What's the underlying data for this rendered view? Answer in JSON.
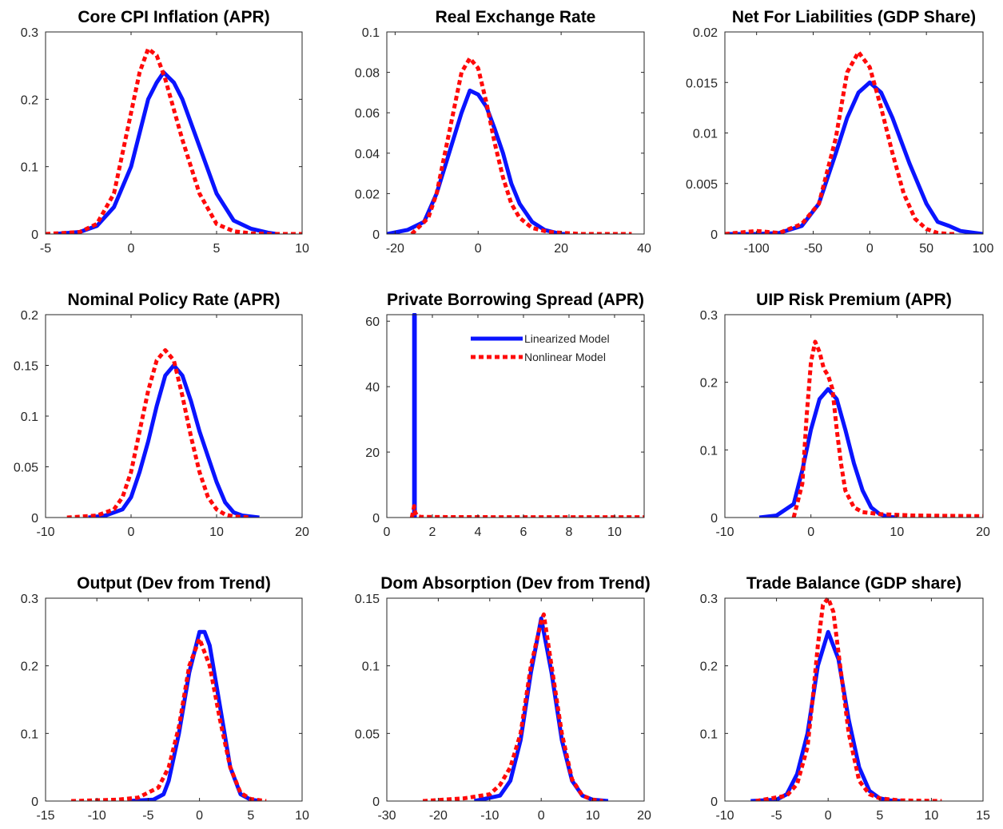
{
  "colors": {
    "linear": "#0a14ff",
    "nonlinear": "#ff0a0a",
    "axes": "#262626"
  },
  "chart_data": [
    {
      "type": "line",
      "title": "Core CPI Inflation (APR)",
      "xlim": [
        -5,
        10
      ],
      "ylim": [
        0,
        0.3
      ],
      "xticks": [
        "-5",
        "0",
        "5",
        "10"
      ],
      "yticks": [
        "0",
        "0.1",
        "0.2",
        "0.3"
      ],
      "series": [
        {
          "key": "linear",
          "x": [
            -4.5,
            -3,
            -2,
            -1,
            0,
            0.5,
            1,
            1.5,
            1.9,
            2.5,
            3,
            4,
            5,
            6,
            7,
            8,
            8.5
          ],
          "y": [
            0,
            0.003,
            0.012,
            0.04,
            0.1,
            0.15,
            0.2,
            0.225,
            0.24,
            0.225,
            0.2,
            0.13,
            0.06,
            0.02,
            0.008,
            0.002,
            0
          ]
        },
        {
          "key": "nonlinear",
          "x": [
            -5,
            -3,
            -2,
            -1,
            -0.5,
            0,
            0.5,
            1,
            1.5,
            2,
            3,
            4,
            5,
            6,
            7,
            8,
            10
          ],
          "y": [
            0,
            0.003,
            0.015,
            0.06,
            0.12,
            0.18,
            0.24,
            0.275,
            0.265,
            0.23,
            0.14,
            0.06,
            0.015,
            0.004,
            0.001,
            0,
            0
          ]
        }
      ]
    },
    {
      "type": "line",
      "title": "Real Exchange Rate",
      "xlim": [
        -22,
        40
      ],
      "ylim": [
        0,
        0.1
      ],
      "xticks": [
        "-20",
        "0",
        "20",
        "40"
      ],
      "yticks": [
        "0",
        "0.02",
        "0.04",
        "0.06",
        "0.08",
        "0.1"
      ],
      "series": [
        {
          "key": "linear",
          "x": [
            -22,
            -17,
            -13,
            -10,
            -7,
            -4,
            -2,
            0,
            2,
            4,
            6,
            8,
            10,
            13,
            16,
            20,
            22
          ],
          "y": [
            0,
            0.002,
            0.006,
            0.02,
            0.04,
            0.06,
            0.071,
            0.069,
            0.063,
            0.052,
            0.04,
            0.025,
            0.015,
            0.006,
            0.002,
            0,
            0
          ]
        },
        {
          "key": "nonlinear",
          "x": [
            -16,
            -12,
            -10,
            -8,
            -6,
            -4,
            -2,
            0,
            2,
            4,
            6,
            8,
            10,
            13,
            17,
            25,
            37
          ],
          "y": [
            0,
            0.008,
            0.02,
            0.04,
            0.06,
            0.08,
            0.087,
            0.082,
            0.065,
            0.045,
            0.028,
            0.015,
            0.008,
            0.003,
            0.001,
            0,
            0
          ]
        }
      ]
    },
    {
      "type": "line",
      "title": "Net For Liabilities (GDP Share)",
      "xlim": [
        -128,
        100
      ],
      "ylim": [
        0,
        0.02
      ],
      "xticks": [
        "-100",
        "-50",
        "0",
        "50",
        "100"
      ],
      "yticks": [
        "0",
        "0.005",
        "0.01",
        "0.015",
        "0.02"
      ],
      "series": [
        {
          "key": "linear",
          "x": [
            -128,
            -100,
            -80,
            -60,
            -45,
            -30,
            -20,
            -10,
            0,
            10,
            20,
            35,
            50,
            60,
            70,
            80,
            100
          ],
          "y": [
            0,
            0,
            0.0001,
            0.0008,
            0.003,
            0.008,
            0.0115,
            0.014,
            0.015,
            0.014,
            0.0115,
            0.007,
            0.003,
            0.0012,
            0.0008,
            0.0003,
            0
          ]
        },
        {
          "key": "nonlinear",
          "x": [
            -128,
            -100,
            -80,
            -60,
            -45,
            -30,
            -20,
            -10,
            0,
            10,
            20,
            30,
            40,
            50,
            60,
            70,
            75
          ],
          "y": [
            0,
            0.0003,
            0.0001,
            0.001,
            0.003,
            0.0095,
            0.016,
            0.018,
            0.0165,
            0.0125,
            0.008,
            0.004,
            0.0015,
            0.0005,
            0.0001,
            0,
            0
          ]
        }
      ]
    },
    {
      "type": "line",
      "title": "Nominal Policy Rate (APR)",
      "xlim": [
        -10,
        20
      ],
      "ylim": [
        0,
        0.2
      ],
      "xticks": [
        "-10",
        "0",
        "10",
        "20"
      ],
      "yticks": [
        "0",
        "0.05",
        "0.1",
        "0.15",
        "0.2"
      ],
      "series": [
        {
          "key": "linear",
          "x": [
            -5,
            -3,
            -1,
            0,
            1,
            2,
            3,
            4,
            5,
            6,
            7,
            8,
            9,
            10,
            11,
            12,
            13,
            15
          ],
          "y": [
            0,
            0.002,
            0.008,
            0.02,
            0.045,
            0.075,
            0.11,
            0.14,
            0.15,
            0.14,
            0.115,
            0.085,
            0.06,
            0.035,
            0.015,
            0.005,
            0.002,
            0
          ]
        },
        {
          "key": "nonlinear",
          "x": [
            -7.5,
            -4,
            -2,
            -1,
            0,
            1,
            2,
            3,
            4,
            5,
            6,
            7,
            8,
            9,
            10,
            11,
            12,
            14
          ],
          "y": [
            0,
            0.002,
            0.008,
            0.02,
            0.045,
            0.085,
            0.125,
            0.155,
            0.165,
            0.155,
            0.12,
            0.08,
            0.045,
            0.02,
            0.008,
            0.003,
            0.001,
            0
          ]
        }
      ]
    },
    {
      "type": "line",
      "title": "Private Borrowing Spread (APR)",
      "xlim": [
        0,
        11.3
      ],
      "ylim": [
        0,
        62
      ],
      "xticks": [
        "0",
        "2",
        "4",
        "6",
        "8",
        "10"
      ],
      "yticks": [
        "0",
        "20",
        "40",
        "60"
      ],
      "series": [
        {
          "key": "linear",
          "name": "Linearized Model",
          "x": [
            1.2,
            1.2,
            1.23,
            1.23
          ],
          "y": [
            0,
            62,
            62,
            0
          ]
        },
        {
          "key": "nonlinear",
          "name": "Nonlinear Model",
          "x": [
            1.1,
            1.2,
            1.25,
            1.35,
            1.5,
            2,
            5,
            8,
            11.3
          ],
          "y": [
            0,
            3.5,
            1.5,
            0.4,
            0.2,
            0.15,
            0.1,
            0.1,
            0.1
          ]
        }
      ],
      "legend": "top-right"
    },
    {
      "type": "line",
      "title": "UIP Risk Premium (APR)",
      "xlim": [
        -10,
        20
      ],
      "ylim": [
        0,
        0.3
      ],
      "xticks": [
        "-10",
        "0",
        "10",
        "20"
      ],
      "yticks": [
        "0",
        "0.1",
        "0.2",
        "0.3"
      ],
      "series": [
        {
          "key": "linear",
          "x": [
            -6,
            -4,
            -2,
            -1,
            0,
            1,
            2,
            3,
            4,
            5,
            6,
            7,
            8,
            9,
            10
          ],
          "y": [
            0,
            0.003,
            0.02,
            0.07,
            0.13,
            0.175,
            0.19,
            0.175,
            0.13,
            0.08,
            0.04,
            0.015,
            0.005,
            0.001,
            0
          ]
        },
        {
          "key": "nonlinear",
          "x": [
            -2,
            -1,
            -0.5,
            0,
            0.5,
            1,
            1.5,
            2,
            2.5,
            3,
            3.5,
            4,
            5,
            6,
            8,
            12,
            20
          ],
          "y": [
            0,
            0.05,
            0.15,
            0.23,
            0.26,
            0.245,
            0.22,
            0.21,
            0.19,
            0.13,
            0.08,
            0.04,
            0.015,
            0.008,
            0.005,
            0.003,
            0.002
          ]
        }
      ]
    },
    {
      "type": "line",
      "title": "Output (Dev from Trend)",
      "xlim": [
        -15,
        10
      ],
      "ylim": [
        0,
        0.3
      ],
      "xticks": [
        "-15",
        "-10",
        "-5",
        "0",
        "5",
        "10"
      ],
      "yticks": [
        "0",
        "0.1",
        "0.2",
        "0.3"
      ],
      "series": [
        {
          "key": "linear",
          "x": [
            -7,
            -4.5,
            -3.5,
            -3,
            -2,
            -1,
            0,
            0.5,
            1,
            2,
            3,
            4,
            5,
            6
          ],
          "y": [
            0,
            0.002,
            0.01,
            0.03,
            0.1,
            0.19,
            0.25,
            0.25,
            0.23,
            0.14,
            0.05,
            0.01,
            0.002,
            0
          ]
        },
        {
          "key": "nonlinear",
          "x": [
            -12.5,
            -8,
            -6,
            -4,
            -3,
            -2,
            -1,
            0,
            1,
            2,
            3,
            4,
            5,
            6.5
          ],
          "y": [
            0,
            0.002,
            0.005,
            0.02,
            0.05,
            0.11,
            0.2,
            0.24,
            0.2,
            0.12,
            0.05,
            0.012,
            0.003,
            0
          ]
        }
      ]
    },
    {
      "type": "line",
      "title": "Dom Absorption (Dev from Trend)",
      "xlim": [
        -30,
        20
      ],
      "ylim": [
        0,
        0.15
      ],
      "xticks": [
        "-30",
        "-20",
        "-10",
        "0",
        "10",
        "20"
      ],
      "yticks": [
        "0",
        "0.05",
        "0.1",
        "0.15"
      ],
      "series": [
        {
          "key": "linear",
          "x": [
            -13,
            -8,
            -6,
            -4,
            -2,
            0,
            2,
            4,
            6,
            8,
            10,
            13
          ],
          "y": [
            0,
            0.004,
            0.015,
            0.045,
            0.095,
            0.135,
            0.095,
            0.045,
            0.015,
            0.004,
            0.001,
            0
          ]
        },
        {
          "key": "nonlinear",
          "x": [
            -23,
            -15,
            -10,
            -8,
            -6,
            -4,
            -2,
            0,
            0.5,
            2,
            4,
            6,
            8,
            10,
            12
          ],
          "y": [
            0,
            0.002,
            0.005,
            0.012,
            0.025,
            0.05,
            0.1,
            0.133,
            0.138,
            0.1,
            0.05,
            0.016,
            0.004,
            0.001,
            0
          ]
        }
      ]
    },
    {
      "type": "line",
      "title": "Trade Balance (GDP share)",
      "xlim": [
        -10,
        15
      ],
      "ylim": [
        0,
        0.3
      ],
      "xticks": [
        "-10",
        "-5",
        "0",
        "5",
        "10",
        "15"
      ],
      "yticks": [
        "0",
        "0.1",
        "0.2",
        "0.3"
      ],
      "series": [
        {
          "key": "linear",
          "x": [
            -7.5,
            -5,
            -4,
            -3,
            -2,
            -1,
            0,
            1,
            2,
            3,
            4,
            5,
            6,
            7
          ],
          "y": [
            0,
            0.002,
            0.01,
            0.04,
            0.1,
            0.2,
            0.25,
            0.21,
            0.12,
            0.05,
            0.015,
            0.004,
            0.001,
            0
          ]
        },
        {
          "key": "nonlinear",
          "x": [
            -7,
            -4,
            -3,
            -2,
            -1.5,
            -1,
            -0.5,
            0,
            0.5,
            1,
            2,
            3,
            4,
            5,
            7,
            11
          ],
          "y": [
            0,
            0.008,
            0.025,
            0.08,
            0.15,
            0.23,
            0.29,
            0.3,
            0.28,
            0.22,
            0.1,
            0.03,
            0.01,
            0.004,
            0.001,
            0
          ]
        }
      ]
    }
  ]
}
